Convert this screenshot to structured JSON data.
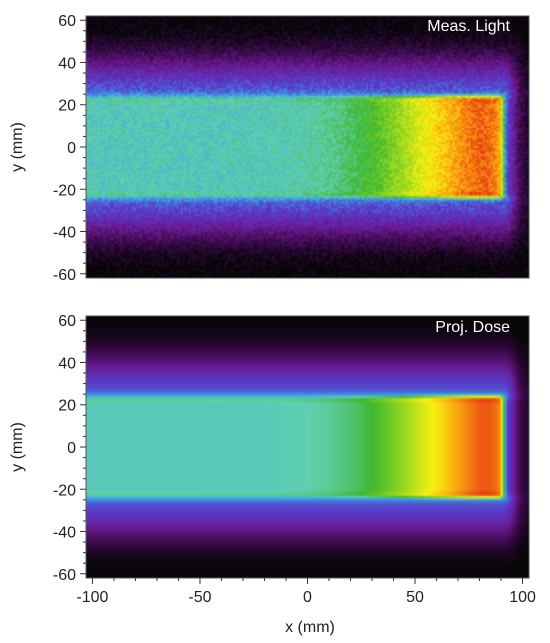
{
  "chart_data": [
    {
      "type": "heatmap",
      "title": "",
      "panel_label": "Meas. Light",
      "xlabel": "",
      "ylabel": "y (mm)",
      "xlim": [
        -103,
        103
      ],
      "ylim": [
        -62,
        62
      ],
      "x_ticks": [],
      "y_ticks": [
        60,
        40,
        20,
        0,
        -20,
        -40,
        -60
      ],
      "colormap": [
        "#050505",
        "#3a0a4a",
        "#6a1a90",
        "#5a3ac8",
        "#3aa0e8",
        "#60d0b0",
        "#40b830",
        "#98d820",
        "#f8f010",
        "#f89010",
        "#e01818"
      ],
      "field": {
        "x_start": -100,
        "x_edge": 93,
        "y_center": 0,
        "half_width": 26,
        "peak_x": 78,
        "peak_level": 1.0,
        "entrance_level": 0.55,
        "noise": 0.04
      }
    },
    {
      "type": "heatmap",
      "title": "",
      "panel_label": "Proj. Dose",
      "xlabel": "x (mm)",
      "ylabel": "y (mm)",
      "xlim": [
        -103,
        103
      ],
      "ylim": [
        -62,
        62
      ],
      "x_ticks": [
        -100,
        -50,
        0,
        50,
        100
      ],
      "y_ticks": [
        60,
        40,
        20,
        0,
        -20,
        -40,
        -60
      ],
      "colormap": [
        "#050505",
        "#3a0a4a",
        "#6a1a90",
        "#5a3ac8",
        "#3aa0e8",
        "#60d0b0",
        "#40b830",
        "#98d820",
        "#f8f010",
        "#f89010",
        "#e01818"
      ],
      "field": {
        "x_start": -100,
        "x_edge": 93,
        "y_center": 0,
        "half_width": 26,
        "peak_x": 80,
        "peak_level": 1.0,
        "entrance_level": 0.55,
        "noise": 0.0
      }
    }
  ]
}
